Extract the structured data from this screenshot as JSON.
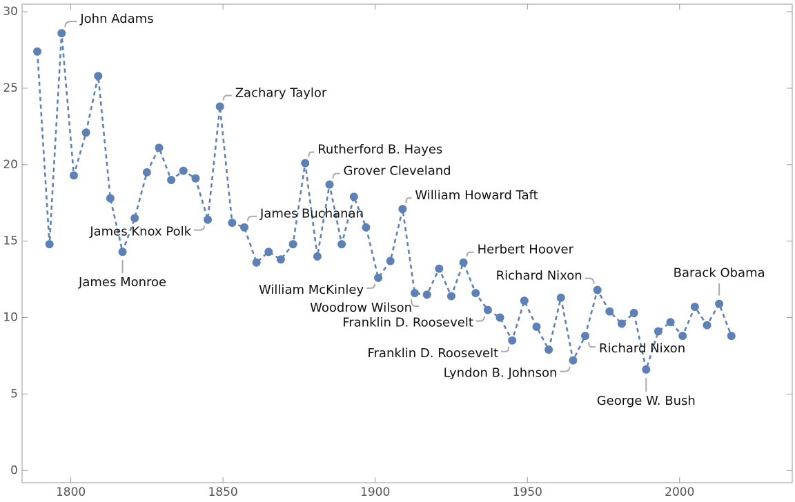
{
  "chart_data": {
    "type": "line",
    "x": [
      1789,
      1793,
      1797,
      1801,
      1805,
      1809,
      1813,
      1817,
      1821,
      1825,
      1829,
      1833,
      1837,
      1841,
      1845,
      1849,
      1853,
      1857,
      1861,
      1865,
      1869,
      1873,
      1877,
      1881,
      1885,
      1889,
      1893,
      1897,
      1901,
      1905,
      1909,
      1913,
      1917,
      1921,
      1925,
      1929,
      1933,
      1937,
      1941,
      1945,
      1949,
      1953,
      1957,
      1961,
      1965,
      1969,
      1973,
      1977,
      1981,
      1985,
      1989,
      1993,
      1997,
      2001,
      2005,
      2009,
      2013,
      2017
    ],
    "values": [
      27.4,
      14.8,
      28.6,
      19.3,
      22.1,
      25.8,
      17.8,
      14.3,
      16.5,
      19.5,
      21.1,
      19.0,
      19.6,
      19.1,
      16.4,
      23.8,
      16.2,
      15.9,
      13.6,
      14.3,
      13.8,
      14.8,
      20.1,
      14.0,
      18.7,
      14.8,
      17.9,
      15.9,
      12.6,
      13.7,
      17.1,
      11.6,
      11.5,
      13.2,
      11.4,
      13.6,
      11.6,
      10.5,
      10.0,
      8.5,
      11.1,
      9.4,
      7.9,
      11.3,
      7.2,
      8.8,
      11.8,
      10.4,
      9.6,
      10.3,
      6.6,
      9.1,
      9.7,
      8.8,
      10.7,
      9.5,
      10.9,
      8.8
    ],
    "color": "#5e81b5",
    "xlim": [
      1784,
      2037
    ],
    "ylim": [
      -0.8,
      30.5
    ],
    "xticks": [
      1800,
      1850,
      1900,
      1950,
      2000
    ],
    "yticks": [
      0,
      5,
      10,
      15,
      20,
      25,
      30
    ],
    "annotations": [
      {
        "text": "John Adams",
        "x": 1797
      },
      {
        "text": "Zachary Taylor",
        "x": 1849
      },
      {
        "text": "Rutherford B. Hayes",
        "x": 1877
      },
      {
        "text": "Grover Cleveland",
        "x": 1885
      },
      {
        "text": "William Howard Taft",
        "x": 1909
      },
      {
        "text": "Herbert Hoover",
        "x": 1929
      },
      {
        "text": "James Buchanan",
        "x": 1857
      },
      {
        "text": "James Knox Polk",
        "x": 1845
      },
      {
        "text": "James Monroe",
        "x": 1817
      },
      {
        "text": "William McKinley",
        "x": 1901
      },
      {
        "text": "Woodrow Wilson",
        "x": 1913
      },
      {
        "text": "Franklin D. Roosevelt",
        "x": 1937
      },
      {
        "text": "Franklin D. Roosevelt",
        "x": 1945
      },
      {
        "text": "Lyndon B. Johnson",
        "x": 1965
      },
      {
        "text": "Richard Nixon",
        "x": 1973
      },
      {
        "text": "Richard Nixon",
        "x": 1969
      },
      {
        "text": "George W. Bush",
        "x": 1989
      },
      {
        "text": "Barack Obama",
        "x": 2013
      }
    ]
  }
}
